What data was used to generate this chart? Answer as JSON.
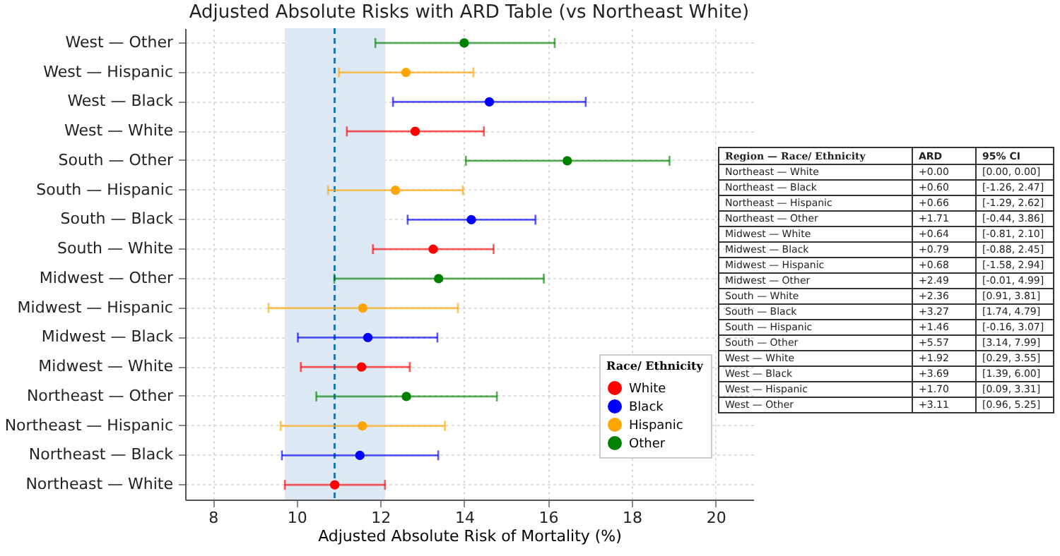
{
  "chart_data": [
    {
      "type": "scatter",
      "orientation": "horizontal",
      "title": "Adjusted Absolute Risks with ARD Table (vs Northeast White)",
      "xlabel": "Adjusted Absolute Risk of Mortality (%)",
      "legend_title": "Race/ Ethnicity",
      "legend": "bottom right",
      "grid": true,
      "marker": "circle",
      "categories": [
        "West — Other",
        "West — Hispanic",
        "West — Black",
        "West — White",
        "South — Other",
        "South — Hispanic",
        "South — Black",
        "South — White",
        "Midwest — Other",
        "Midwest — Hispanic",
        "Midwest — Black",
        "Midwest — White",
        "Northeast — Other",
        "Northeast — Hispanic",
        "Northeast — Black",
        "Northeast — White"
      ],
      "xlim": [
        7.34,
        20.9
      ],
      "xticks": [
        8,
        10,
        12,
        14,
        16,
        18,
        20
      ],
      "series": [
        {
          "name": "White",
          "color": "#ff0000",
          "values": [
            null,
            null,
            null,
            12.83,
            null,
            null,
            null,
            13.26,
            null,
            null,
            null,
            11.55,
            null,
            null,
            null,
            10.91
          ],
          "errors": [
            null,
            null,
            null,
            [
              11.2,
              14.47
            ],
            null,
            null,
            null,
            [
              11.82,
              14.7
            ],
            null,
            null,
            null,
            [
              10.1,
              12.7
            ],
            null,
            null,
            null,
            [
              9.72,
              12.11
            ]
          ]
        },
        {
          "name": "Black",
          "color": "#0000ff",
          "values": [
            null,
            null,
            14.6,
            null,
            null,
            null,
            14.17,
            null,
            null,
            null,
            11.7,
            null,
            null,
            null,
            11.51,
            null
          ],
          "errors": [
            null,
            null,
            [
              12.3,
              16.9
            ],
            null,
            null,
            null,
            [
              12.65,
              15.7
            ],
            null,
            null,
            null,
            [
              10.03,
              13.36
            ],
            null,
            null,
            null,
            [
              9.65,
              13.38
            ],
            null
          ]
        },
        {
          "name": "Hispanic",
          "color": "#ffa500",
          "values": [
            null,
            12.61,
            null,
            null,
            null,
            12.36,
            null,
            null,
            null,
            11.58,
            null,
            null,
            null,
            11.57,
            null,
            null
          ],
          "errors": [
            null,
            [
              11.01,
              14.22
            ],
            null,
            null,
            null,
            [
              10.75,
              13.97
            ],
            null,
            null,
            null,
            [
              9.33,
              13.85
            ],
            null,
            null,
            null,
            [
              9.62,
              13.54
            ],
            null,
            null
          ]
        },
        {
          "name": "Other",
          "color": "#008000",
          "values": [
            14.0,
            null,
            null,
            null,
            16.46,
            null,
            null,
            null,
            13.39,
            null,
            null,
            null,
            12.62,
            null,
            null,
            null
          ],
          "errors": [
            [
              11.88,
              16.16
            ],
            null,
            null,
            null,
            [
              14.04,
              18.9
            ],
            null,
            null,
            null,
            [
              10.9,
              15.9
            ],
            null,
            null,
            null,
            [
              10.47,
              14.78
            ],
            null,
            null,
            null
          ]
        }
      ],
      "bands": [
        {
          "axis": "x",
          "from": 9.72,
          "to": 12.11,
          "color": "#dce8f4"
        }
      ],
      "ref_lines": [
        {
          "axis": "x",
          "value": 10.91,
          "color": "#1f77b4",
          "line_style": "dashed"
        }
      ]
    },
    {
      "type": "other",
      "annotations": [
        "Region  —  Race/ Ethnicity",
        "ARD",
        "95% CI",
        "Northeast — White",
        "+0.00",
        "[0.00, 0.00]",
        "Northeast — Black",
        "+0.60",
        "[-1.26, 2.47]",
        "Northeast — Hispanic",
        "+0.66",
        "[-1.29, 2.62]",
        "Northeast — Other",
        "+1.71",
        "[-0.44, 3.86]",
        "Midwest — White",
        "+0.64",
        "[-0.81, 2.10]",
        "Midwest — Black",
        "+0.79",
        "[-0.88, 2.45]",
        "Midwest — Hispanic",
        "+0.68",
        "[-1.58, 2.94]",
        "Midwest — Other",
        "+2.49",
        "[-0.01, 4.99]",
        "South — White",
        "+2.36",
        "[0.91, 3.81]",
        "South — Black",
        "+3.27",
        "[1.74, 4.79]",
        "South — Hispanic",
        "+1.46",
        "[-0.16, 3.07]",
        "South — Other",
        "+5.57",
        "[3.14, 7.99]",
        "West — White",
        "+1.92",
        "[0.29, 3.55]",
        "West — Black",
        "+3.69",
        "[1.39, 6.00]",
        "West — Hispanic",
        "+1.70",
        "[0.09, 3.31]",
        "West — Other",
        "+3.11",
        "[0.96, 5.25]"
      ]
    }
  ]
}
